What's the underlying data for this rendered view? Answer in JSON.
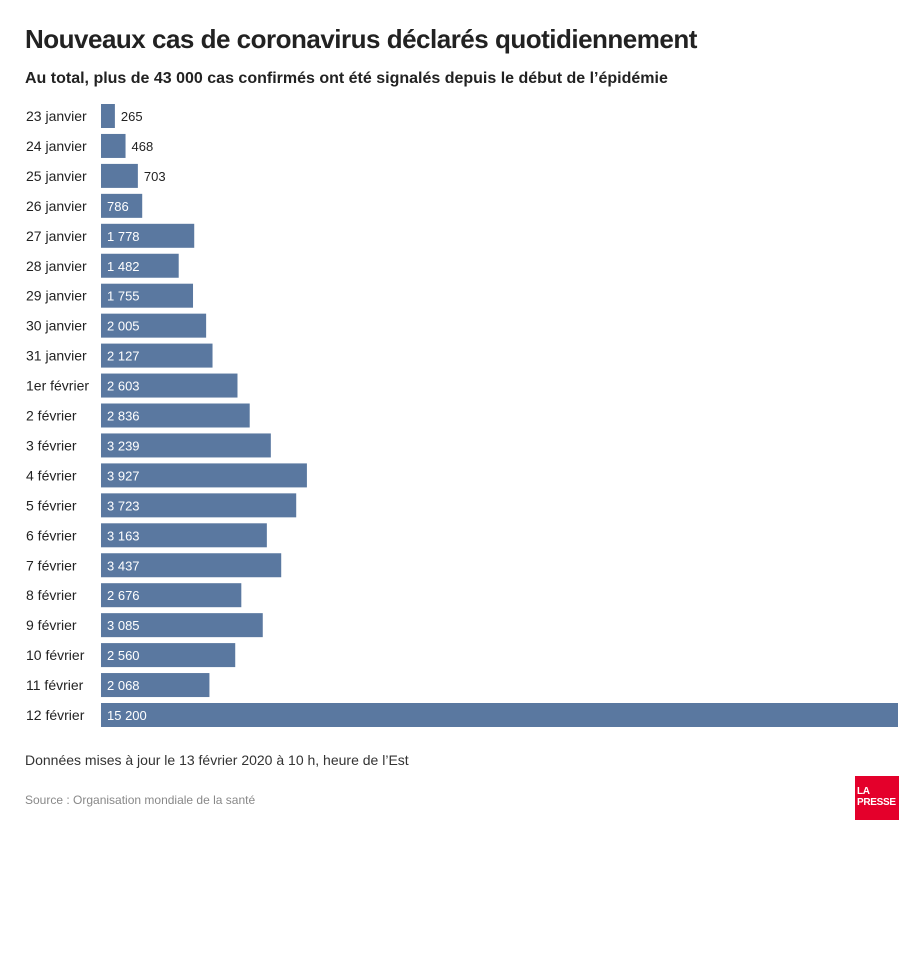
{
  "chart_data": {
    "type": "bar",
    "orientation": "horizontal",
    "title": "Nouveaux cas de coronavirus déclarés quotidiennement",
    "subtitle": "Au total, plus de 43 000 cas confirmés ont été signalés depuis le début de l’épidémie",
    "categories": [
      "23 janvier",
      "24 janvier",
      "25 janvier",
      "26 janvier",
      "27 janvier",
      "28 janvier",
      "29 janvier",
      "30 janvier",
      "31 janvier",
      "1er février",
      "2 février",
      "3 février",
      "4 février",
      "5 février",
      "6 février",
      "7 février",
      "8 février",
      "9 février",
      "10 février",
      "11 février",
      "12 février"
    ],
    "values": [
      265,
      468,
      703,
      786,
      1778,
      1482,
      1755,
      2005,
      2127,
      2603,
      2836,
      3239,
      3927,
      3723,
      3163,
      3437,
      2676,
      3085,
      2560,
      2068,
      15200
    ],
    "value_labels": [
      "265",
      "468",
      "703",
      "786",
      "1 778",
      "1 482",
      "1 755",
      "2 005",
      "2 127",
      "2 603",
      "2 836",
      "3 239",
      "3 927",
      "3 723",
      "3 163",
      "3 437",
      "2 676",
      "3 085",
      "2 560",
      "2 068",
      "15 200"
    ],
    "bar_color": "#5a78a0",
    "xlim": [
      0,
      15200
    ],
    "grid": false,
    "legend": "none"
  },
  "note": "Données mises à jour le 13 février 2020 à 10 h, heure de l’Est",
  "source": "Source : Organisation mondiale de la santé",
  "logo": {
    "line1": "LA",
    "line2": "PRESSE",
    "color": "#e4002b"
  }
}
